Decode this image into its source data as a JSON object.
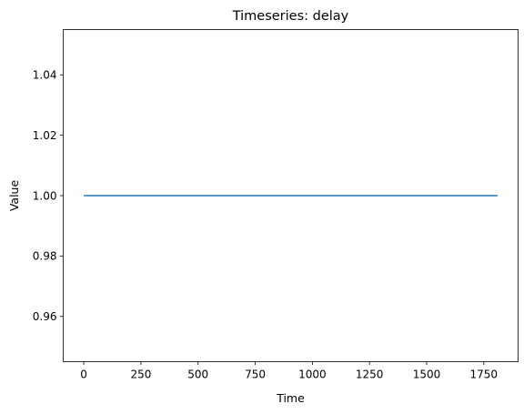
{
  "chart_data": {
    "type": "line",
    "title": "Timeseries: delay",
    "xlabel": "Time",
    "ylabel": "Value",
    "xlim": [
      -90,
      1900
    ],
    "ylim": [
      0.945,
      1.055
    ],
    "xticks": [
      0,
      250,
      500,
      750,
      1000,
      1250,
      1500,
      1750
    ],
    "yticks": [
      0.96,
      0.98,
      1.0,
      1.02,
      1.04
    ],
    "ytick_labels": [
      "0.96",
      "0.98",
      "1.00",
      "1.02",
      "1.04"
    ],
    "grid": false,
    "series": [
      {
        "color": "#1f77b4",
        "x": [
          0,
          1810
        ],
        "y": [
          1.0,
          1.0
        ]
      }
    ]
  }
}
